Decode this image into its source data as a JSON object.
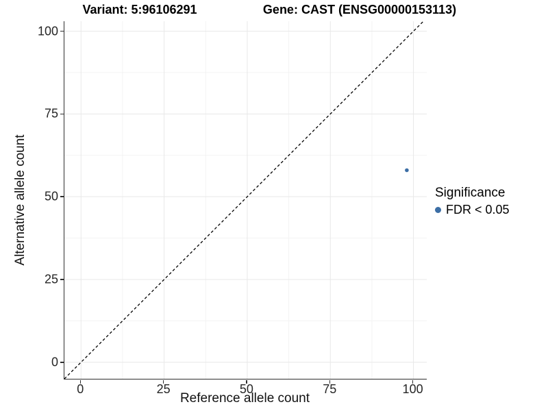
{
  "titles": {
    "variant": "Variant: 5:96106291",
    "gene": "Gene: CAST (ENSG00000153113)"
  },
  "axes": {
    "x": {
      "label": "Reference allele count",
      "tick_labels": [
        "0",
        "25",
        "50",
        "75",
        "100"
      ]
    },
    "y": {
      "label": "Alternative allele count",
      "tick_labels": [
        "0",
        "25",
        "50",
        "75",
        "100"
      ]
    }
  },
  "legend": {
    "title": "Significance",
    "items": [
      {
        "label": "FDR < 0.05",
        "color": "#3C6EA5"
      }
    ]
  },
  "colors": {
    "point": "#3C6EA5",
    "grid_major": "#e8e8e8",
    "grid_minor": "#f3f3f3",
    "axis_line": "#2e2e2e",
    "reference_line": "#000000",
    "background": "#ffffff"
  },
  "chart_data": {
    "type": "scatter",
    "title": "Variant: 5:96106291 — Gene: CAST (ENSG00000153113)",
    "xlabel": "Reference allele count",
    "ylabel": "Alternative allele count",
    "x_ticks": [
      0,
      25,
      50,
      75,
      100
    ],
    "y_ticks": [
      0,
      25,
      50,
      75,
      100
    ],
    "xlim": [
      -5,
      104
    ],
    "ylim": [
      -5,
      103
    ],
    "grid": "major+minor",
    "legend_position": "right",
    "reference_line": {
      "type": "identity y=x",
      "style": "dashed",
      "color": "#000000"
    },
    "series": [
      {
        "name": "FDR < 0.05",
        "color": "#3C6EA5",
        "points": [
          {
            "x": 98,
            "y": 58
          }
        ]
      }
    ]
  }
}
